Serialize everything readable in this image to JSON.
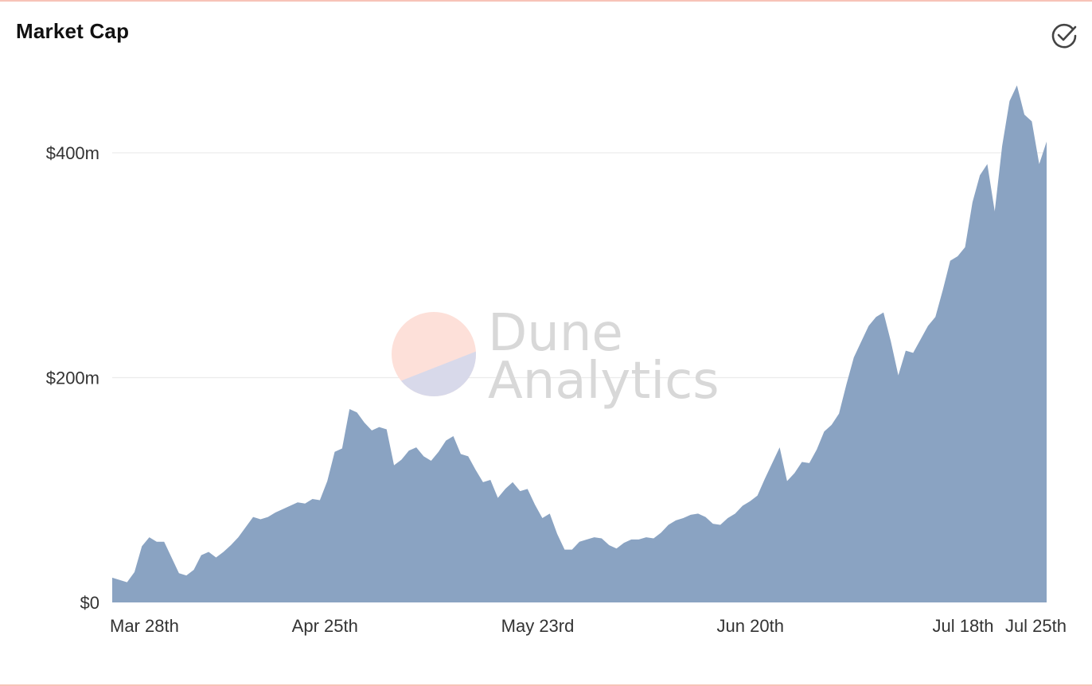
{
  "header": {
    "title": "Market Cap",
    "verified_icon": "check-circle-icon"
  },
  "watermark": {
    "line1": "Dune",
    "line2": "Analytics",
    "logo_colors": [
      "#fde0d9",
      "#d8d9ea"
    ]
  },
  "colors": {
    "area_fill": "#8aa3c2",
    "gridline": "#ececec",
    "border": "#f7c3b8"
  },
  "chart_data": {
    "type": "area",
    "title": "Market Cap",
    "xlabel": "",
    "ylabel": "",
    "x_start": "2023-03-28",
    "x_end": "2023-07-29",
    "ylim": [
      0,
      460
    ],
    "y_unit": "$m",
    "y_ticks": [
      {
        "value": 0,
        "label": "$0"
      },
      {
        "value": 200,
        "label": "$200m"
      },
      {
        "value": 400,
        "label": "$400m"
      }
    ],
    "x_ticks": [
      {
        "date": "2023-03-28",
        "label": "Mar 28th"
      },
      {
        "date": "2023-04-25",
        "label": "Apr 25th"
      },
      {
        "date": "2023-05-23",
        "label": "May 23rd"
      },
      {
        "date": "2023-06-20",
        "label": "Jun 20th"
      },
      {
        "date": "2023-07-18",
        "label": "Jul 18th"
      },
      {
        "date": "2023-07-25",
        "label": "Jul 25th"
      }
    ],
    "grid": true,
    "legend": "none",
    "series": [
      {
        "values": [
          22,
          20,
          18,
          27,
          50,
          58,
          54,
          54,
          40,
          26,
          24,
          29,
          42,
          45,
          40,
          45,
          51,
          58,
          67,
          76,
          74,
          76,
          80,
          83,
          86,
          89,
          88,
          92,
          91,
          108,
          134,
          137,
          172,
          169,
          160,
          153,
          156,
          154,
          122,
          127,
          135,
          138,
          130,
          126,
          134,
          144,
          148,
          132,
          130,
          118,
          107,
          109,
          93,
          101,
          107,
          99,
          101,
          87,
          75,
          79,
          61,
          47,
          47,
          54,
          56,
          58,
          57,
          51,
          48,
          53,
          56,
          56,
          58,
          57,
          62,
          69,
          73,
          75,
          78,
          79,
          76,
          70,
          69,
          75,
          79,
          86,
          90,
          95,
          110,
          124,
          138,
          108,
          115,
          125,
          124,
          136,
          152,
          158,
          168,
          194,
          218,
          232,
          246,
          254,
          258,
          232,
          202,
          224,
          222,
          234,
          246,
          254,
          278,
          304,
          308,
          316,
          356,
          380,
          390,
          348,
          406,
          446,
          460,
          434,
          428,
          390,
          410
        ]
      }
    ]
  }
}
